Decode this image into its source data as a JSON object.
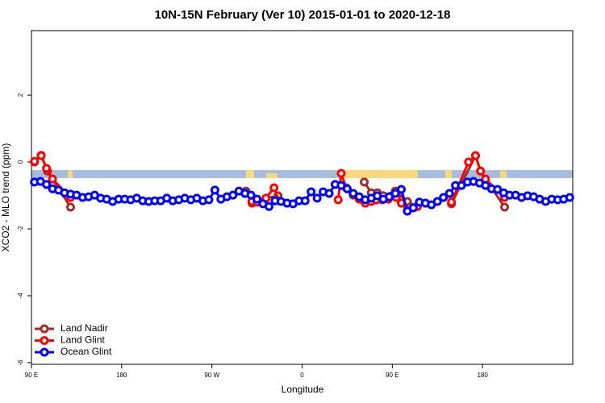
{
  "chart_data": {
    "type": "line",
    "title": "10N-15N February (Ver 10)   2015-01-01 to 2020-12-18",
    "xlabel": "Longitude",
    "ylabel": "XCO2 - MLO trend (ppm)",
    "xlim": [
      90,
      630
    ],
    "xticks": [
      {
        "value": 90,
        "label": "90 E"
      },
      180,
      {
        "value": 270,
        "label": "90 W"
      },
      {
        "value": 360,
        "label": "0"
      },
      {
        "value": 450,
        "label": "90 E"
      },
      {
        "value": 540,
        "label": "180"
      }
    ],
    "ylim": [
      -6.05,
      3.93
    ],
    "yticks": [
      -6,
      -4,
      -2,
      0,
      2
    ],
    "legend": "bottom-left",
    "series": [
      {
        "name": "Land Nadir",
        "color": "#a52a2a",
        "x": [
          93,
          99.7,
          106,
          129,
          null,
          304,
          310,
          324,
          336,
          null,
          422,
          429,
          435,
          441,
          453,
          465,
          475,
          null,
          509,
          533,
          538,
          562
        ],
        "values": [
          0,
          0.2,
          -0.27,
          -1.35,
          null,
          -0.87,
          -1.23,
          -1.08,
          -1.01,
          null,
          -0.6,
          -0.92,
          -0.92,
          -1.01,
          -0.87,
          -1.18,
          -1.33,
          null,
          -1.25,
          0.19,
          -0.27,
          -1.35
        ]
      },
      {
        "name": "Land Glint",
        "color": "#ff0000",
        "x": [
          93,
          99.7,
          105,
          111,
          129,
          null,
          310,
          315,
          324,
          332,
          337,
          null,
          396,
          399,
          404,
          411,
          417,
          423,
          429,
          434,
          440,
          446,
          454,
          459,
          465,
          475,
          null,
          509,
          526,
          533,
          538,
          543,
          562
        ],
        "values": [
          0.02,
          0.19,
          -0.19,
          -0.51,
          -1.06,
          null,
          -1.18,
          -1.2,
          -1.08,
          -0.77,
          -1.16,
          null,
          -1.13,
          -0.34,
          -0.77,
          -0.99,
          -1.11,
          -1.23,
          -1.18,
          -1.13,
          -1.13,
          -1.11,
          -1.06,
          -1.23,
          -1.45,
          -1.33,
          null,
          -1.2,
          0,
          0.19,
          -0.27,
          -0.51,
          -1.06
        ]
      },
      {
        "name": "Ocean Glint",
        "color": "#0000ff",
        "x": [
          93,
          99,
          105,
          111,
          117,
          123,
          129,
          135,
          141,
          147,
          153,
          159,
          165,
          171,
          177,
          183,
          189,
          195,
          201,
          207,
          213,
          219,
          225,
          231,
          237,
          243,
          249,
          255,
          261,
          267,
          273,
          279,
          285,
          291,
          297,
          303,
          309,
          315,
          321,
          327,
          333,
          339,
          345,
          351,
          357,
          363,
          369,
          375,
          381,
          387,
          393,
          399,
          405,
          411,
          417,
          423,
          429,
          435,
          441,
          447,
          453,
          459,
          465,
          471,
          477,
          483,
          489,
          495,
          501,
          507,
          513,
          519,
          525,
          531,
          537,
          543,
          549,
          555,
          561,
          567,
          573,
          579,
          585,
          591,
          597,
          603,
          609,
          615,
          621,
          627
        ],
        "values": [
          -0.6,
          -0.58,
          -0.67,
          -0.8,
          -0.84,
          -0.92,
          -0.96,
          -0.99,
          -1.06,
          -1.04,
          -0.99,
          -1.08,
          -1.11,
          -1.18,
          -1.11,
          -1.11,
          -1.13,
          -1.08,
          -1.16,
          -1.18,
          -1.16,
          -1.16,
          -1.08,
          -1.16,
          -1.13,
          -1.08,
          -1.13,
          -1.08,
          -1.16,
          -1.13,
          -0.84,
          -1.11,
          -1.04,
          -0.99,
          -0.87,
          -0.94,
          -0.99,
          -1.11,
          -1.25,
          -1.33,
          -1.16,
          -1.18,
          -1.23,
          -1.25,
          -1.16,
          -1.16,
          -0.89,
          -1.08,
          -0.89,
          -0.94,
          -0.67,
          -0.7,
          -0.8,
          -0.94,
          -1.04,
          -1.13,
          -1.08,
          -1.01,
          -1.11,
          -1.04,
          -0.94,
          -0.82,
          -1.47,
          -1.37,
          -1.2,
          -1.23,
          -1.28,
          -1.18,
          -1.06,
          -0.94,
          -0.7,
          -0.7,
          -0.6,
          -0.58,
          -0.63,
          -0.7,
          -0.8,
          -0.82,
          -0.92,
          -0.99,
          -0.99,
          -1.06,
          -1.01,
          -1.04,
          -1.11,
          -1.18,
          -1.11,
          -1.13,
          -1.11,
          -1.06
        ]
      }
    ]
  }
}
